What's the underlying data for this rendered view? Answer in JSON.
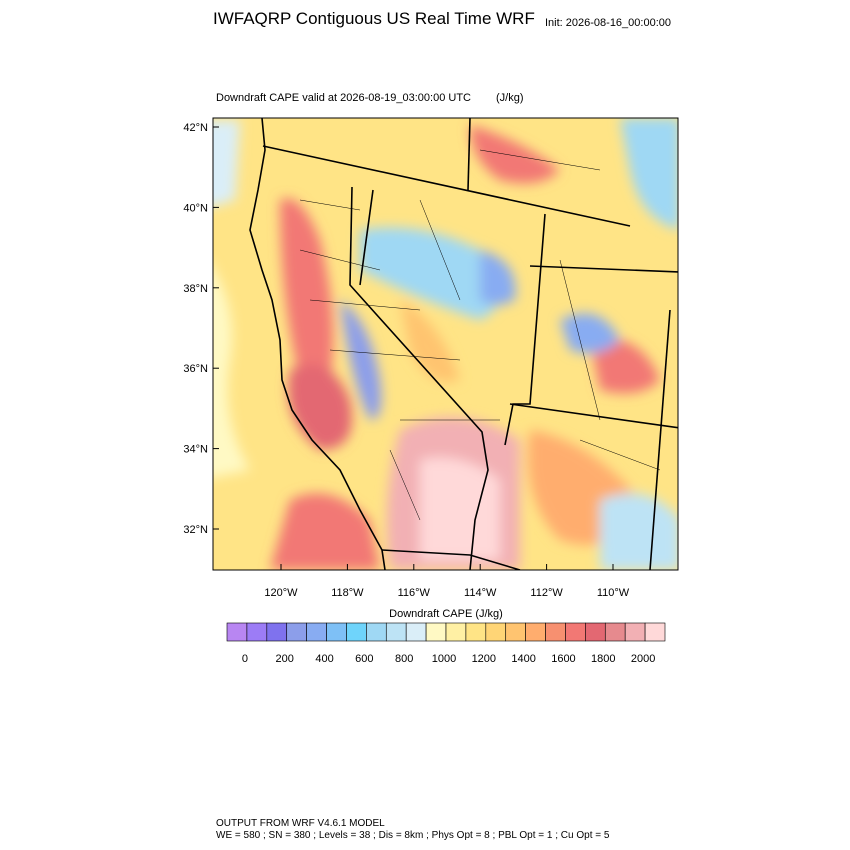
{
  "title": "IWFAQRP Contiguous US Real Time WRF",
  "init": "Init: 2026-08-16_00:00:00",
  "subtitle": "Downdraft CAPE valid at 2026-08-19_03:00:00 UTC",
  "units": "(J/kg)",
  "lat_ticks": [
    "42°N",
    "40°N",
    "38°N",
    "36°N",
    "34°N",
    "32°N"
  ],
  "lon_ticks": [
    "120°W",
    "118°W",
    "116°W",
    "114°W",
    "112°W",
    "110°W"
  ],
  "colorbar": {
    "title": "Downdraft CAPE  (J/kg)",
    "colors": [
      "#b886f2",
      "#9c7cf6",
      "#7f72ee",
      "#8c9eea",
      "#88acf2",
      "#7ec0f6",
      "#6fd4fb",
      "#9fd8f4",
      "#bde3f5",
      "#daeef8",
      "#fff9c4",
      "#fff0a4",
      "#ffe486",
      "#ffd576",
      "#ffc470",
      "#ffad6e",
      "#f79070",
      "#f27874",
      "#e36872",
      "#e68a8e",
      "#f2b0b4",
      "#ffd9d9"
    ],
    "labels": [
      "0",
      "200",
      "400",
      "600",
      "800",
      "1000",
      "1200",
      "1400",
      "1600",
      "1800",
      "2000"
    ]
  },
  "footer": [
    "OUTPUT FROM WRF V4.6.1 MODEL",
    "WE = 580 ; SN = 380 ; Levels = 38 ; Dis = 8km ; Phys Opt = 8 ; PBL Opt = 1 ; Cu Opt = 5"
  ]
}
